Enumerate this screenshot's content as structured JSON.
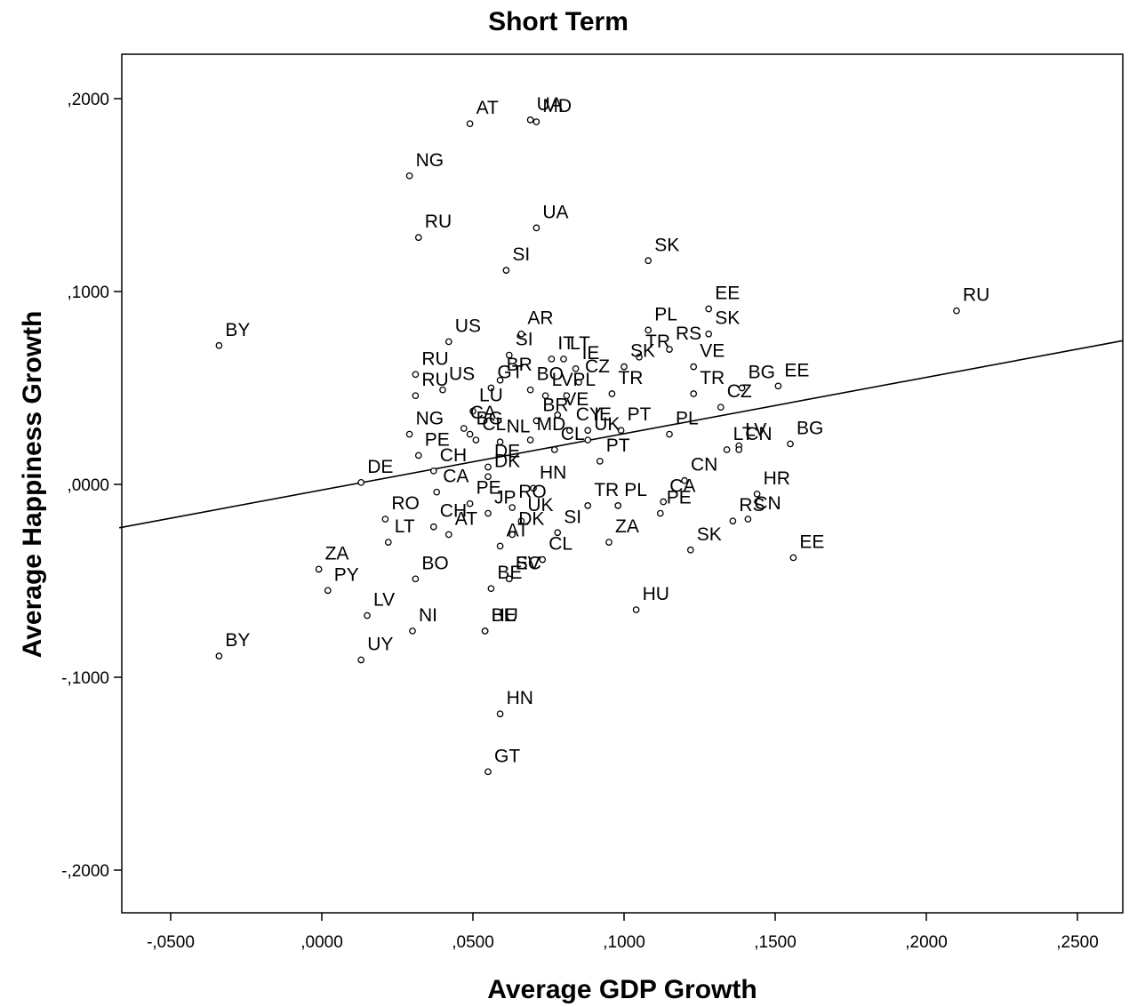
{
  "chart_data": {
    "type": "scatter",
    "title": "Short Term",
    "xlabel": "Average GDP Growth",
    "ylabel": "Average Happiness Growth",
    "xlim": [
      -0.067,
      0.265
    ],
    "ylim": [
      -0.22,
      0.222
    ],
    "xticks": [
      -0.05,
      0.0,
      0.05,
      0.1,
      0.15,
      0.2,
      0.25
    ],
    "xtick_labels": [
      "-,0500",
      ",0000",
      ",0500",
      ",1000",
      ",1500",
      ",2000",
      ",2500"
    ],
    "yticks": [
      0.2,
      0.1,
      0.0,
      -0.1,
      -0.2
    ],
    "ytick_labels": [
      ",2000",
      ",1000",
      ",0000",
      "-,1000",
      "-,2000"
    ],
    "grid": false,
    "legend": "none",
    "regression_line": {
      "x": [
        -0.067,
        0.265
      ],
      "y": [
        -0.0225,
        0.0745
      ]
    },
    "points": [
      {
        "label": "AT",
        "x": 0.049,
        "y": 0.187
      },
      {
        "label": "UA",
        "x": 0.069,
        "y": 0.189
      },
      {
        "label": "MD",
        "x": 0.071,
        "y": 0.188
      },
      {
        "label": "NG",
        "x": 0.029,
        "y": 0.16
      },
      {
        "label": "UA",
        "x": 0.071,
        "y": 0.133
      },
      {
        "label": "RU",
        "x": 0.032,
        "y": 0.128
      },
      {
        "label": "SI",
        "x": 0.061,
        "y": 0.111
      },
      {
        "label": "SK",
        "x": 0.108,
        "y": 0.116
      },
      {
        "label": "EE",
        "x": 0.128,
        "y": 0.091
      },
      {
        "label": "RU",
        "x": 0.21,
        "y": 0.09
      },
      {
        "label": "BY",
        "x": -0.034,
        "y": 0.072
      },
      {
        "label": "US",
        "x": 0.042,
        "y": 0.074
      },
      {
        "label": "SI",
        "x": 0.062,
        "y": 0.067
      },
      {
        "label": "AR",
        "x": 0.066,
        "y": 0.078
      },
      {
        "label": "LT",
        "x": 0.08,
        "y": 0.065
      },
      {
        "label": "PL",
        "x": 0.108,
        "y": 0.08
      },
      {
        "label": "SK",
        "x": 0.128,
        "y": 0.078
      },
      {
        "label": "TR",
        "x": 0.105,
        "y": 0.066
      },
      {
        "label": "RU",
        "x": 0.031,
        "y": 0.057
      },
      {
        "label": "US",
        "x": 0.04,
        "y": 0.049
      },
      {
        "label": "BR",
        "x": 0.059,
        "y": 0.054
      },
      {
        "label": "IT",
        "x": 0.076,
        "y": 0.065
      },
      {
        "label": "IE",
        "x": 0.084,
        "y": 0.06
      },
      {
        "label": "VE",
        "x": 0.123,
        "y": 0.061
      },
      {
        "label": "BG",
        "x": 0.139,
        "y": 0.05
      },
      {
        "label": "EE",
        "x": 0.151,
        "y": 0.051
      },
      {
        "label": "RU",
        "x": 0.031,
        "y": 0.046
      },
      {
        "label": "GT",
        "x": 0.056,
        "y": 0.05
      },
      {
        "label": "BO",
        "x": 0.069,
        "y": 0.049
      },
      {
        "label": "CZ",
        "x": 0.085,
        "y": 0.053
      },
      {
        "label": "TR",
        "x": 0.096,
        "y": 0.047
      },
      {
        "label": "SK",
        "x": 0.1,
        "y": 0.061
      },
      {
        "label": "RS",
        "x": 0.115,
        "y": 0.07
      },
      {
        "label": "TR",
        "x": 0.123,
        "y": 0.047
      },
      {
        "label": "LV",
        "x": 0.074,
        "y": 0.046
      },
      {
        "label": "NG",
        "x": 0.029,
        "y": 0.026
      },
      {
        "label": "LU",
        "x": 0.05,
        "y": 0.038
      },
      {
        "label": "VE",
        "x": 0.078,
        "y": 0.036
      },
      {
        "label": "PL",
        "x": 0.081,
        "y": 0.046
      },
      {
        "label": "CZ",
        "x": 0.132,
        "y": 0.04
      },
      {
        "label": "BR",
        "x": 0.071,
        "y": 0.033
      },
      {
        "label": "CY",
        "x": 0.082,
        "y": 0.028
      },
      {
        "label": "IE",
        "x": 0.088,
        "y": 0.028
      },
      {
        "label": "PT",
        "x": 0.099,
        "y": 0.028
      },
      {
        "label": "LT",
        "x": 0.134,
        "y": 0.018
      },
      {
        "label": "LV",
        "x": 0.138,
        "y": 0.02
      },
      {
        "label": "BG",
        "x": 0.155,
        "y": 0.021
      },
      {
        "label": "CA",
        "x": 0.047,
        "y": 0.029
      },
      {
        "label": "PE",
        "x": 0.032,
        "y": 0.015
      },
      {
        "label": "BG",
        "x": 0.049,
        "y": 0.026
      },
      {
        "label": "CL",
        "x": 0.051,
        "y": 0.023
      },
      {
        "label": "NL",
        "x": 0.059,
        "y": 0.022
      },
      {
        "label": "MD",
        "x": 0.069,
        "y": 0.023
      },
      {
        "label": "UK",
        "x": 0.088,
        "y": 0.023
      },
      {
        "label": "PL",
        "x": 0.115,
        "y": 0.026
      },
      {
        "label": "CN",
        "x": 0.12,
        "y": 0.002
      },
      {
        "label": "HR",
        "x": 0.144,
        "y": -0.005
      },
      {
        "label": "DE",
        "x": 0.013,
        "y": 0.001
      },
      {
        "label": "CH",
        "x": 0.037,
        "y": 0.007
      },
      {
        "label": "CL",
        "x": 0.077,
        "y": 0.018
      },
      {
        "label": "DK",
        "x": 0.055,
        "y": 0.004
      },
      {
        "label": "DE",
        "x": 0.055,
        "y": 0.009
      },
      {
        "label": "PT",
        "x": 0.092,
        "y": 0.012
      },
      {
        "label": "CA",
        "x": 0.113,
        "y": -0.009
      },
      {
        "label": "CN",
        "x": 0.138,
        "y": 0.018
      },
      {
        "label": "RO",
        "x": 0.021,
        "y": -0.018
      },
      {
        "label": "CA",
        "x": 0.038,
        "y": -0.004
      },
      {
        "label": "PE",
        "x": 0.049,
        "y": -0.01
      },
      {
        "label": "HN",
        "x": 0.07,
        "y": -0.002
      },
      {
        "label": "JP",
        "x": 0.055,
        "y": -0.015
      },
      {
        "label": "RO",
        "x": 0.063,
        "y": -0.012
      },
      {
        "label": "UK",
        "x": 0.066,
        "y": -0.019
      },
      {
        "label": "SI",
        "x": 0.078,
        "y": -0.025
      },
      {
        "label": "TR",
        "x": 0.088,
        "y": -0.011
      },
      {
        "label": "PL",
        "x": 0.098,
        "y": -0.011
      },
      {
        "label": "PE",
        "x": 0.112,
        "y": -0.015
      },
      {
        "label": "SK",
        "x": 0.122,
        "y": -0.034
      },
      {
        "label": "RS",
        "x": 0.136,
        "y": -0.019
      },
      {
        "label": "CN",
        "x": 0.141,
        "y": -0.018
      },
      {
        "label": "EE",
        "x": 0.156,
        "y": -0.038
      },
      {
        "label": "ZA",
        "x": -0.001,
        "y": -0.044
      },
      {
        "label": "LT",
        "x": 0.022,
        "y": -0.03
      },
      {
        "label": "CH",
        "x": 0.037,
        "y": -0.022
      },
      {
        "label": "AT",
        "x": 0.042,
        "y": -0.026
      },
      {
        "label": "DK",
        "x": 0.063,
        "y": -0.026
      },
      {
        "label": "CL",
        "x": 0.073,
        "y": -0.039
      },
      {
        "label": "AT",
        "x": 0.059,
        "y": -0.032
      },
      {
        "label": "BE",
        "x": 0.056,
        "y": -0.054
      },
      {
        "label": "SV",
        "x": 0.062,
        "y": -0.049
      },
      {
        "label": "ZA",
        "x": 0.095,
        "y": -0.03
      },
      {
        "label": "HU",
        "x": 0.104,
        "y": -0.065
      },
      {
        "label": "BO",
        "x": 0.031,
        "y": -0.049
      },
      {
        "label": "PY",
        "x": 0.002,
        "y": -0.055
      },
      {
        "label": "LV",
        "x": 0.015,
        "y": -0.068
      },
      {
        "label": "NI",
        "x": 0.03,
        "y": -0.076
      },
      {
        "label": "BE",
        "x": 0.054,
        "y": -0.076
      },
      {
        "label": "EC",
        "x": 0.062,
        "y": -0.049
      },
      {
        "label": "HU",
        "x": 0.054,
        "y": -0.076
      },
      {
        "label": "BY",
        "x": -0.034,
        "y": -0.089
      },
      {
        "label": "UY",
        "x": 0.013,
        "y": -0.091
      },
      {
        "label": "HN",
        "x": 0.059,
        "y": -0.119
      },
      {
        "label": "GT",
        "x": 0.055,
        "y": -0.149
      }
    ]
  }
}
